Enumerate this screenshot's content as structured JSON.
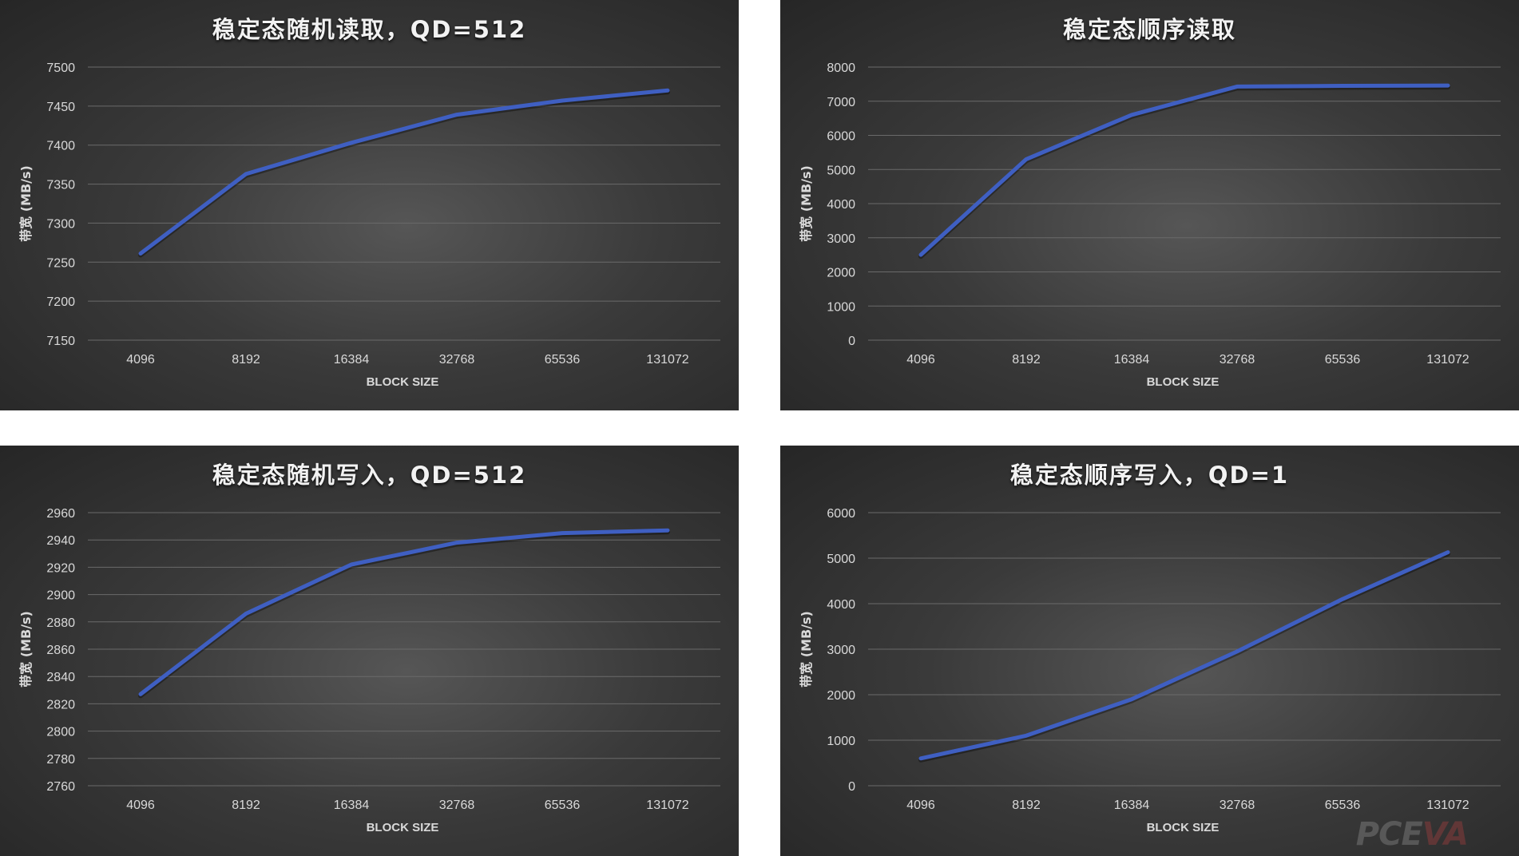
{
  "charts": [
    {
      "title": "稳定态随机读取，QD=512",
      "chart_data": {
        "type": "line",
        "title": "稳定态随机读取，QD=512",
        "xlabel": "BLOCK SIZE",
        "ylabel": "带宽 (MB/s)",
        "categories": [
          "4096",
          "8192",
          "16384",
          "32768",
          "65536",
          "131072"
        ],
        "yticks": [
          7150,
          7200,
          7250,
          7300,
          7350,
          7400,
          7450,
          7500
        ],
        "ylim": [
          7150,
          7500
        ],
        "series": [
          {
            "values": [
              7261,
              7363,
              7403,
              7439,
              7457,
              7470
            ]
          }
        ],
        "grid": true
      }
    },
    {
      "title": "稳定态顺序读取",
      "chart_data": {
        "type": "line",
        "title": "稳定态顺序读取",
        "xlabel": "BLOCK SIZE",
        "ylabel": "带宽 (MB/s)",
        "categories": [
          "4096",
          "8192",
          "16384",
          "32768",
          "65536",
          "131072"
        ],
        "yticks": [
          0,
          1000,
          2000,
          3000,
          4000,
          5000,
          6000,
          7000,
          8000
        ],
        "ylim": [
          0,
          8000
        ],
        "series": [
          {
            "values": [
              2500,
              5300,
              6600,
              7430,
              7450,
              7460
            ]
          }
        ],
        "grid": true
      }
    },
    {
      "title": "稳定态随机写入，QD=512",
      "chart_data": {
        "type": "line",
        "title": "稳定态随机写入，QD=512",
        "xlabel": "BLOCK SIZE",
        "ylabel": "带宽 (MB/s)",
        "categories": [
          "4096",
          "8192",
          "16384",
          "32768",
          "65536",
          "131072"
        ],
        "yticks": [
          2760,
          2780,
          2800,
          2820,
          2840,
          2860,
          2880,
          2900,
          2920,
          2940,
          2960
        ],
        "ylim": [
          2760,
          2960
        ],
        "series": [
          {
            "values": [
              2827,
              2886,
              2922,
              2938,
              2945,
              2947
            ]
          }
        ],
        "grid": true
      }
    },
    {
      "title": "稳定态顺序写入，QD=1",
      "chart_data": {
        "type": "line",
        "title": "稳定态顺序写入，QD=1",
        "xlabel": "BLOCK SIZE",
        "ylabel": "带宽 (MB/s)",
        "categories": [
          "4096",
          "8192",
          "16384",
          "32768",
          "65536",
          "131072"
        ],
        "yticks": [
          0,
          1000,
          2000,
          3000,
          4000,
          5000,
          6000
        ],
        "ylim": [
          0,
          6000
        ],
        "series": [
          {
            "values": [
              600,
              1100,
              1900,
              2950,
              4100,
              5130
            ]
          }
        ],
        "grid": true
      }
    }
  ],
  "watermark": {
    "left": "PCE",
    "mid": "VA"
  },
  "colors": {
    "line": "#3f5fc2",
    "grid": "#6a6a6a",
    "tick_text": "#d9d9d9",
    "axis_title": "#d9d9d9",
    "title": "#f2f2f2"
  }
}
